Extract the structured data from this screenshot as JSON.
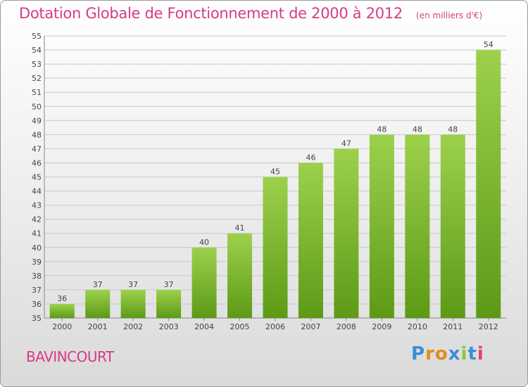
{
  "chart_data": {
    "type": "bar",
    "title": "Dotation Globale de Fonctionnement de 2000 à 2012",
    "unit": "(en milliers d'€)",
    "categories": [
      "2000",
      "2001",
      "2002",
      "2003",
      "2004",
      "2005",
      "2006",
      "2007",
      "2008",
      "2009",
      "2010",
      "2011",
      "2012"
    ],
    "values": [
      36,
      37,
      37,
      37,
      40,
      41,
      45,
      46,
      47,
      48,
      48,
      48,
      54
    ],
    "ylim": [
      35,
      55
    ],
    "yticks": [
      35,
      36,
      37,
      38,
      39,
      40,
      41,
      42,
      43,
      44,
      45,
      46,
      47,
      48,
      49,
      50,
      51,
      52,
      53,
      54,
      55
    ],
    "grid": true,
    "xlabel": "",
    "ylabel": "",
    "colors": {
      "bar_top": "#9dd14c",
      "bar_bottom": "#5c9a16",
      "title": "#d63b86",
      "grid": "#c8c8c8"
    }
  },
  "footer": {
    "commune": "BAVINCOURT",
    "brand": "Proxiti"
  }
}
